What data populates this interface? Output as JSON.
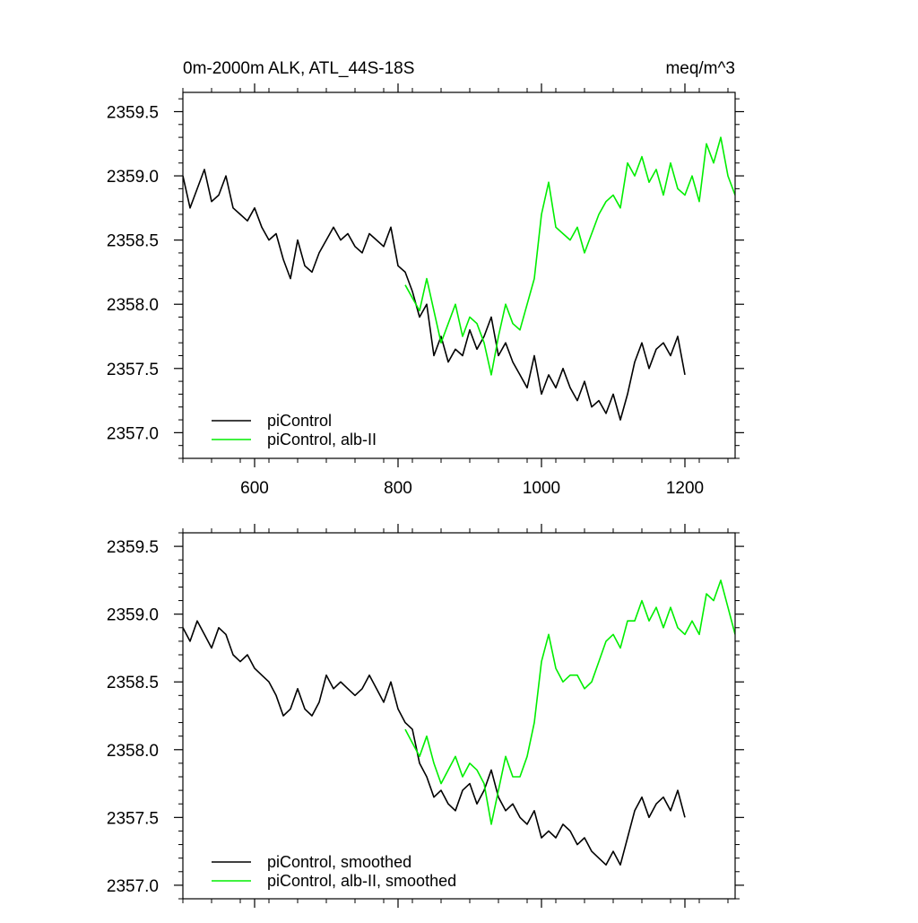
{
  "chart_data": [
    {
      "type": "line",
      "title": "0m-2000m ALK, ATL_44S-18S",
      "units": "meq/m^3",
      "xlabel": "",
      "ylabel": "",
      "xlim": [
        500,
        1270
      ],
      "ylim": [
        2356.8,
        2359.65
      ],
      "x_ticks": [
        600,
        800,
        1000,
        1200
      ],
      "x_tick_labels": [
        "600",
        "800",
        "1000",
        "1200"
      ],
      "y_ticks": [
        2357.0,
        2357.5,
        2358.0,
        2358.5,
        2359.0,
        2359.5
      ],
      "y_tick_labels": [
        "2357.0",
        "2357.5",
        "2358.0",
        "2358.5",
        "2359.0",
        "2359.5"
      ],
      "grid": false,
      "legend_position": "bottom-left",
      "series": [
        {
          "name": "piControl",
          "color": "#000000",
          "x": [
            500,
            510,
            520,
            530,
            540,
            550,
            560,
            570,
            580,
            590,
            600,
            610,
            620,
            630,
            640,
            650,
            660,
            670,
            680,
            690,
            700,
            710,
            720,
            730,
            740,
            750,
            760,
            770,
            780,
            790,
            800,
            810,
            820,
            830,
            840,
            850,
            860,
            870,
            880,
            890,
            900,
            910,
            920,
            930,
            940,
            950,
            960,
            970,
            980,
            990,
            1000,
            1010,
            1020,
            1030,
            1040,
            1050,
            1060,
            1070,
            1080,
            1090,
            1100,
            1110,
            1120,
            1130,
            1140,
            1150,
            1160,
            1170,
            1180,
            1190,
            1200
          ],
          "y": [
            2359.0,
            2358.75,
            2358.9,
            2359.05,
            2358.8,
            2358.85,
            2359.0,
            2358.75,
            2358.7,
            2358.65,
            2358.75,
            2358.6,
            2358.5,
            2358.55,
            2358.35,
            2358.2,
            2358.5,
            2358.3,
            2358.25,
            2358.4,
            2358.5,
            2358.6,
            2358.5,
            2358.55,
            2358.45,
            2358.4,
            2358.55,
            2358.5,
            2358.45,
            2358.6,
            2358.3,
            2358.25,
            2358.1,
            2357.9,
            2358.0,
            2357.6,
            2357.75,
            2357.55,
            2357.65,
            2357.6,
            2357.8,
            2357.65,
            2357.75,
            2357.9,
            2357.6,
            2357.7,
            2357.55,
            2357.45,
            2357.35,
            2357.6,
            2357.3,
            2357.45,
            2357.35,
            2357.5,
            2357.35,
            2357.25,
            2357.4,
            2357.2,
            2357.25,
            2357.15,
            2357.3,
            2357.1,
            2357.3,
            2357.55,
            2357.7,
            2357.5,
            2357.65,
            2357.7,
            2357.6,
            2357.75,
            2357.45
          ]
        },
        {
          "name": "piControl, alb-II",
          "color": "#00ee00",
          "x": [
            810,
            820,
            830,
            840,
            850,
            860,
            870,
            880,
            890,
            900,
            910,
            920,
            930,
            940,
            950,
            960,
            970,
            980,
            990,
            1000,
            1010,
            1020,
            1030,
            1040,
            1050,
            1060,
            1070,
            1080,
            1090,
            1100,
            1110,
            1120,
            1130,
            1140,
            1150,
            1160,
            1170,
            1180,
            1190,
            1200,
            1210,
            1220,
            1230,
            1240,
            1250,
            1260,
            1270
          ],
          "y": [
            2358.15,
            2358.05,
            2357.95,
            2358.2,
            2357.95,
            2357.7,
            2357.85,
            2358.0,
            2357.75,
            2357.9,
            2357.85,
            2357.7,
            2357.45,
            2357.75,
            2358.0,
            2357.85,
            2357.8,
            2358.0,
            2358.2,
            2358.7,
            2358.95,
            2358.6,
            2358.55,
            2358.5,
            2358.6,
            2358.4,
            2358.55,
            2358.7,
            2358.8,
            2358.85,
            2358.75,
            2359.1,
            2359.0,
            2359.15,
            2358.95,
            2359.05,
            2358.85,
            2359.1,
            2358.9,
            2358.85,
            2359.0,
            2358.8,
            2359.25,
            2359.1,
            2359.3,
            2359.0,
            2358.85
          ]
        }
      ]
    },
    {
      "type": "line",
      "title": "",
      "units": "",
      "xlabel": "",
      "ylabel": "",
      "xlim": [
        500,
        1270
      ],
      "ylim": [
        2356.9,
        2359.6
      ],
      "x_ticks": [
        600,
        800,
        1000,
        1200
      ],
      "x_tick_labels": [],
      "y_ticks": [
        2357.0,
        2357.5,
        2358.0,
        2358.5,
        2359.0,
        2359.5
      ],
      "y_tick_labels": [
        "2357.0",
        "2357.5",
        "2358.0",
        "2358.5",
        "2359.0",
        "2359.5"
      ],
      "grid": false,
      "legend_position": "bottom-left",
      "series": [
        {
          "name": "piControl, smoothed",
          "color": "#000000",
          "x": [
            500,
            510,
            520,
            530,
            540,
            550,
            560,
            570,
            580,
            590,
            600,
            610,
            620,
            630,
            640,
            650,
            660,
            670,
            680,
            690,
            700,
            710,
            720,
            730,
            740,
            750,
            760,
            770,
            780,
            790,
            800,
            810,
            820,
            830,
            840,
            850,
            860,
            870,
            880,
            890,
            900,
            910,
            920,
            930,
            940,
            950,
            960,
            970,
            980,
            990,
            1000,
            1010,
            1020,
            1030,
            1040,
            1050,
            1060,
            1070,
            1080,
            1090,
            1100,
            1110,
            1120,
            1130,
            1140,
            1150,
            1160,
            1170,
            1180,
            1190,
            1200
          ],
          "y": [
            2358.9,
            2358.8,
            2358.95,
            2358.85,
            2358.75,
            2358.9,
            2358.85,
            2358.7,
            2358.65,
            2358.7,
            2358.6,
            2358.55,
            2358.5,
            2358.4,
            2358.25,
            2358.3,
            2358.45,
            2358.3,
            2358.25,
            2358.35,
            2358.55,
            2358.45,
            2358.5,
            2358.45,
            2358.4,
            2358.45,
            2358.55,
            2358.45,
            2358.35,
            2358.5,
            2358.3,
            2358.2,
            2358.15,
            2357.9,
            2357.8,
            2357.65,
            2357.7,
            2357.6,
            2357.55,
            2357.7,
            2357.75,
            2357.6,
            2357.7,
            2357.85,
            2357.65,
            2357.55,
            2357.6,
            2357.5,
            2357.45,
            2357.55,
            2357.35,
            2357.4,
            2357.35,
            2357.45,
            2357.4,
            2357.3,
            2357.35,
            2357.25,
            2357.2,
            2357.15,
            2357.25,
            2357.15,
            2357.35,
            2357.55,
            2357.65,
            2357.5,
            2357.6,
            2357.65,
            2357.55,
            2357.7,
            2357.5
          ]
        },
        {
          "name": "piControl, alb-II, smoothed",
          "color": "#00ee00",
          "x": [
            810,
            820,
            830,
            840,
            850,
            860,
            870,
            880,
            890,
            900,
            910,
            920,
            930,
            940,
            950,
            960,
            970,
            980,
            990,
            1000,
            1010,
            1020,
            1030,
            1040,
            1050,
            1060,
            1070,
            1080,
            1090,
            1100,
            1110,
            1120,
            1130,
            1140,
            1150,
            1160,
            1170,
            1180,
            1190,
            1200,
            1210,
            1220,
            1230,
            1240,
            1250,
            1260,
            1270
          ],
          "y": [
            2358.15,
            2358.05,
            2357.95,
            2358.1,
            2357.9,
            2357.75,
            2357.85,
            2357.95,
            2357.8,
            2357.9,
            2357.85,
            2357.75,
            2357.45,
            2357.7,
            2357.95,
            2357.8,
            2357.8,
            2357.95,
            2358.2,
            2358.65,
            2358.85,
            2358.6,
            2358.5,
            2358.55,
            2358.55,
            2358.45,
            2358.5,
            2358.65,
            2358.8,
            2358.85,
            2358.75,
            2358.95,
            2358.95,
            2359.1,
            2358.95,
            2359.05,
            2358.9,
            2359.05,
            2358.9,
            2358.85,
            2358.95,
            2358.85,
            2359.15,
            2359.1,
            2359.25,
            2359.05,
            2358.85
          ]
        }
      ]
    }
  ]
}
